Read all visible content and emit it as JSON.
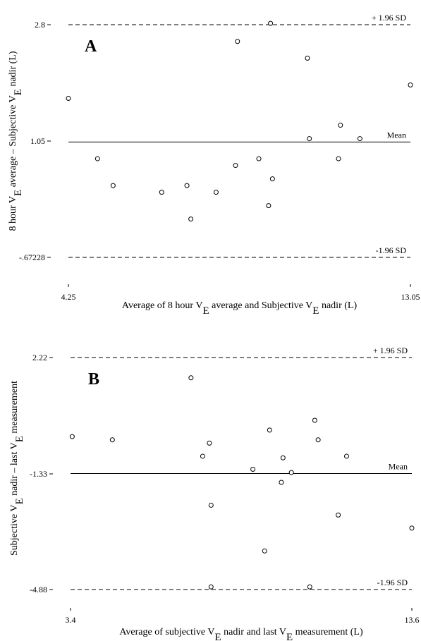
{
  "chart_data": [
    {
      "type": "scatter",
      "panel_label": "A",
      "xlabel": {
        "prefix": "Average of 8 hour V",
        "sub1": "E",
        "middle": " average and Subjective V",
        "sub2": "E",
        "suffix": " nadir  (L)"
      },
      "ylabel": {
        "prefix": "8 hour V",
        "sub1": "E",
        "middle": " average – Subjective V",
        "sub2": "E",
        "suffix": " nadir  (L)"
      },
      "xlim": [
        4.25,
        13.05
      ],
      "ylim": [
        -1.7,
        3.1
      ],
      "x_ticks": [
        "4.25",
        "13.05"
      ],
      "y_ticks": [
        "2.8",
        "1.05",
        "-.67228"
      ],
      "reference_lines": [
        {
          "label": "+ 1.96 SD",
          "value": 2.8,
          "style": "dashed"
        },
        {
          "label": "Mean",
          "value": 1.05,
          "style": "solid"
        },
        {
          "label": "-1.96 SD",
          "value": -0.67228,
          "style": "dashed"
        }
      ],
      "points": [
        {
          "x": 4.25,
          "y": 1.7
        },
        {
          "x": 5.0,
          "y": 0.8
        },
        {
          "x": 5.4,
          "y": 0.4
        },
        {
          "x": 6.65,
          "y": 0.3
        },
        {
          "x": 7.3,
          "y": 0.4
        },
        {
          "x": 7.4,
          "y": -0.1
        },
        {
          "x": 8.05,
          "y": 0.3
        },
        {
          "x": 8.55,
          "y": 0.7
        },
        {
          "x": 8.6,
          "y": 2.55
        },
        {
          "x": 9.15,
          "y": 0.8
        },
        {
          "x": 9.4,
          "y": 0.1
        },
        {
          "x": 9.45,
          "y": 2.82
        },
        {
          "x": 9.5,
          "y": 0.5
        },
        {
          "x": 10.4,
          "y": 2.3
        },
        {
          "x": 10.45,
          "y": 1.1
        },
        {
          "x": 11.2,
          "y": 0.8
        },
        {
          "x": 11.25,
          "y": 1.3
        },
        {
          "x": 11.75,
          "y": 1.1
        },
        {
          "x": 13.05,
          "y": 1.9
        }
      ]
    },
    {
      "type": "scatter",
      "panel_label": "B",
      "xlabel": {
        "prefix": "Average of subjective V",
        "sub1": "E",
        "middle": " nadir and last V",
        "sub2": "E",
        "suffix": " measurement  (L)"
      },
      "ylabel": {
        "prefix": "Subjective V",
        "sub1": "E",
        "middle": " nadir – last V",
        "sub2": "E",
        "suffix": " measurement"
      },
      "xlim": [
        3.4,
        13.6
      ],
      "ylim": [
        -5.2,
        2.5
      ],
      "x_ticks": [
        "3.4",
        "13.6"
      ],
      "y_ticks": [
        "2.22",
        "-1.33",
        "-4.88"
      ],
      "reference_lines": [
        {
          "label": "+ 1.96 SD",
          "value": 2.22,
          "style": "dashed"
        },
        {
          "label": "Mean",
          "value": -1.33,
          "style": "solid"
        },
        {
          "label": "-1.96 SD",
          "value": -4.88,
          "style": "dashed"
        }
      ],
      "points": [
        {
          "x": 3.45,
          "y": -0.2
        },
        {
          "x": 4.65,
          "y": -0.3
        },
        {
          "x": 7.0,
          "y": 1.6
        },
        {
          "x": 7.35,
          "y": -0.8
        },
        {
          "x": 7.55,
          "y": -0.4
        },
        {
          "x": 7.6,
          "y": -2.3
        },
        {
          "x": 7.6,
          "y": -4.8
        },
        {
          "x": 8.85,
          "y": -1.2
        },
        {
          "x": 9.2,
          "y": -3.7
        },
        {
          "x": 9.35,
          "y": 0.0
        },
        {
          "x": 9.7,
          "y": -1.6
        },
        {
          "x": 9.75,
          "y": -0.85
        },
        {
          "x": 10.0,
          "y": -1.3
        },
        {
          "x": 10.55,
          "y": -4.8
        },
        {
          "x": 10.7,
          "y": 0.3
        },
        {
          "x": 10.8,
          "y": -0.3
        },
        {
          "x": 11.4,
          "y": -2.6
        },
        {
          "x": 11.65,
          "y": -0.8
        },
        {
          "x": 13.6,
          "y": -3.0
        }
      ]
    }
  ]
}
